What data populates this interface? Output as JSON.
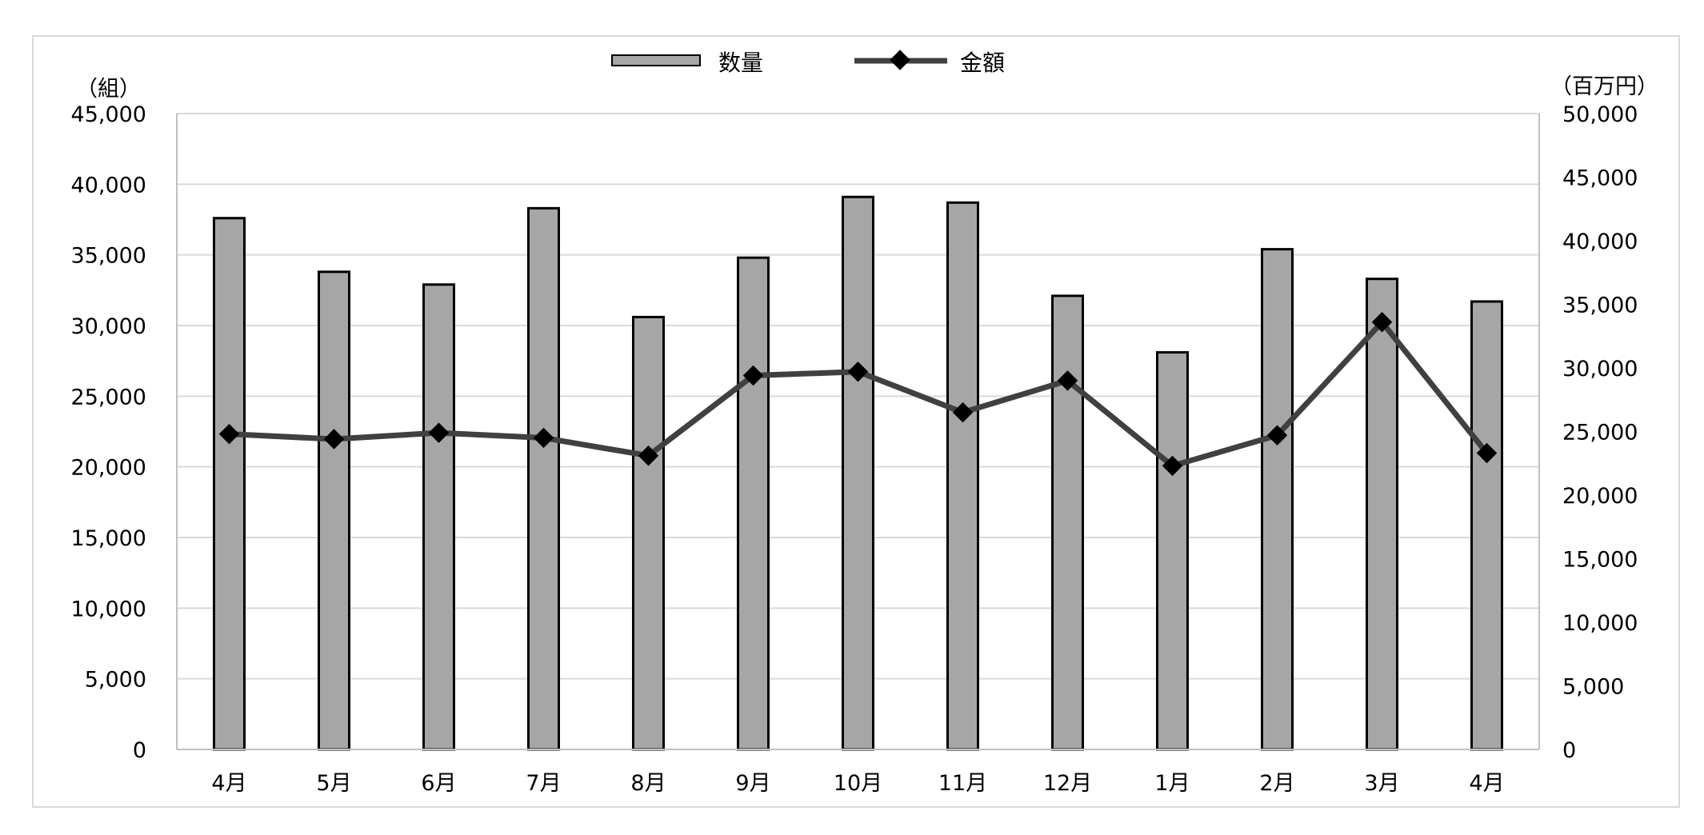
{
  "chart_data": {
    "type": "bar",
    "categories": [
      "4月",
      "5月",
      "6月",
      "7月",
      "8月",
      "9月",
      "10月",
      "11月",
      "12月",
      "1月",
      "2月",
      "3月",
      "4月"
    ],
    "series": [
      {
        "name": "数量",
        "type": "bar",
        "axis": "left",
        "values": [
          37600,
          33800,
          32900,
          38300,
          30600,
          34800,
          39100,
          38700,
          32100,
          28100,
          35400,
          33300,
          31700
        ]
      },
      {
        "name": "金額",
        "type": "line",
        "axis": "right",
        "values": [
          24800,
          24400,
          24900,
          24500,
          23100,
          29400,
          29700,
          26500,
          29000,
          22300,
          24700,
          33600,
          23300
        ]
      }
    ],
    "left_axis": {
      "unit_label": "（組）",
      "ylim": [
        0,
        45000
      ],
      "ticks": [
        "0",
        "5,000",
        "10,000",
        "15,000",
        "20,000",
        "25,000",
        "30,000",
        "35,000",
        "40,000",
        "45,000"
      ]
    },
    "right_axis": {
      "unit_label": "（百万円）",
      "ylim": [
        0,
        50000
      ],
      "ticks": [
        "0",
        "5,000",
        "10,000",
        "15,000",
        "20,000",
        "25,000",
        "30,000",
        "35,000",
        "40,000",
        "45,000",
        "50,000"
      ]
    },
    "grid": true,
    "legend_position": "top-center",
    "colors": {
      "bar_fill": "#a6a6a6",
      "bar_stroke": "#000000",
      "line": "#404040",
      "marker": "#000000",
      "grid": "#d9d9d9"
    }
  }
}
